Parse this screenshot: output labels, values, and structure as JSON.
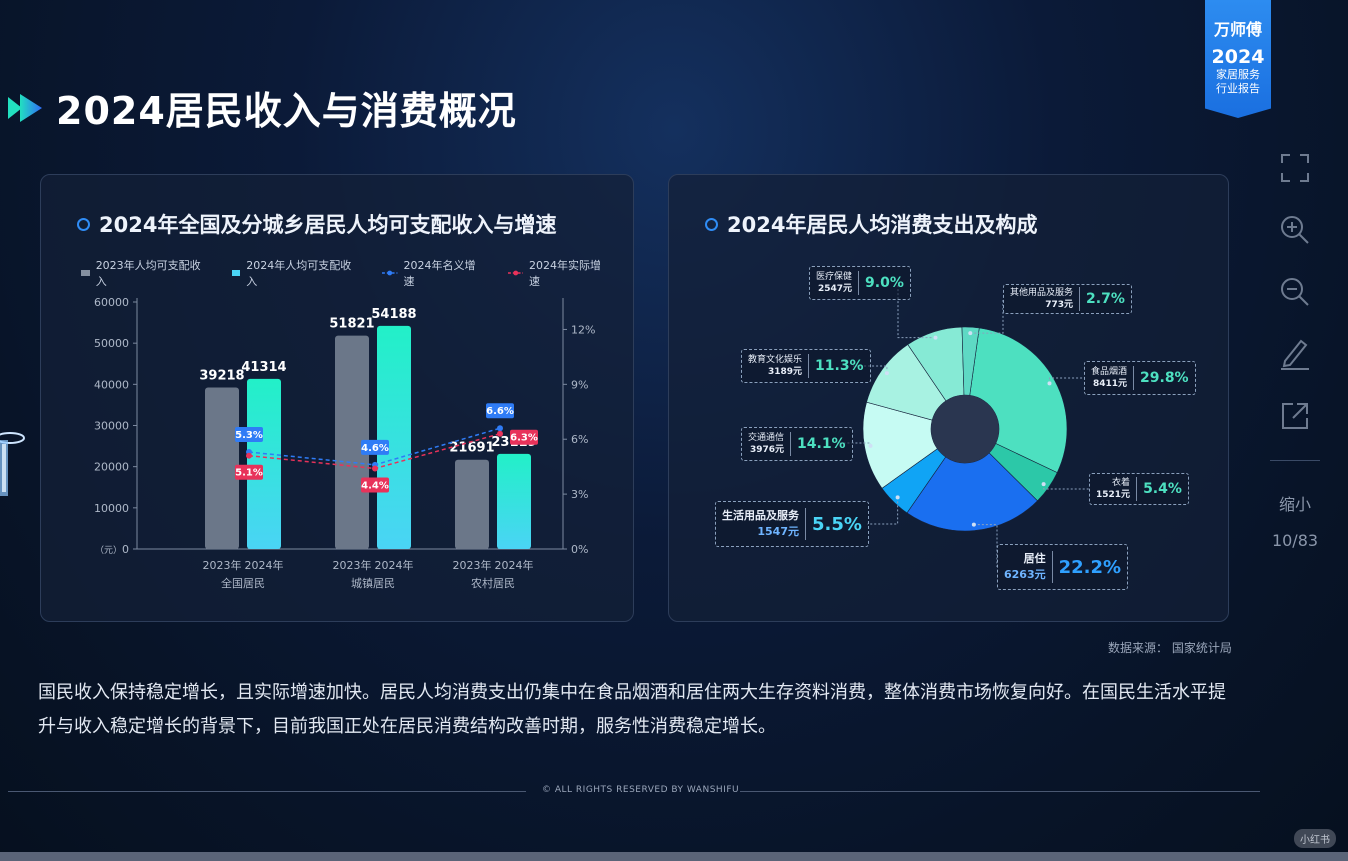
{
  "page": {
    "title": "2024居民收入与消费概况"
  },
  "brand": {
    "name": "万师傅",
    "year": "2024",
    "sub_line1": "家居服务",
    "sub_line2": "行业报告"
  },
  "toolbar": {
    "zoom_label": "缩小",
    "page_counter": "10/83"
  },
  "left_panel": {
    "title": "2024年全国及分城乡居民人均可支配收入与增速",
    "legend": [
      "2023年人均可支配收入",
      "2024年人均可支配收入",
      "2024年名义增速",
      "2024年实际增速"
    ]
  },
  "right_panel": {
    "title": "2024年居民人均消费支出及构成",
    "callouts": [
      {
        "name": "医疗保健",
        "amount": "2547元",
        "pct": "9.0%"
      },
      {
        "name": "其他用品及服务",
        "amount": "773元",
        "pct": "2.7%"
      },
      {
        "name": "教育文化娱乐",
        "amount": "3189元",
        "pct": "11.3%"
      },
      {
        "name": "食品烟酒",
        "amount": "8411元",
        "pct": "29.8%"
      },
      {
        "name": "交通通信",
        "amount": "3976元",
        "pct": "14.1%"
      },
      {
        "name": "衣着",
        "amount": "1521元",
        "pct": "5.4%"
      },
      {
        "name": "生活用品及服务",
        "amount": "1547元",
        "pct": "5.5%"
      },
      {
        "name": "居住",
        "amount": "6263元",
        "pct": "22.2%"
      }
    ]
  },
  "source": "数据来源：  国家统计局",
  "summary": "国民收入保持稳定增长，且实际增速加快。居民人均消费支出仍集中在食品烟酒和居住两大生存资料消费，整体消费市场恢复向好。在国民生活水平提升与收入稳定增长的背景下，目前我国正处在居民消费结构改善时期，服务性消费稳定增长。",
  "footer": "© ALL RIGHTS RESERVED BY WANSHIFU",
  "watermark": "小红书",
  "colors": {
    "bar2023": "#6b7789",
    "bar2024_top": "#22f0c8",
    "bar2024_bottom": "#4ad4f5",
    "nominal": "#2f7cf6",
    "real": "#e8325a",
    "accent": "#2f8cf5"
  },
  "chart_data": [
    {
      "type": "bar",
      "title": "2024年全国及分城乡居民人均可支配收入与增速",
      "categories": [
        "全国居民",
        "城镇居民",
        "农村居民"
      ],
      "sub_labels": [
        "2023年",
        "2024年"
      ],
      "y_unit": "（元）",
      "ylim": [
        0,
        60000
      ],
      "yticks": [
        0,
        10000,
        20000,
        30000,
        40000,
        50000,
        60000
      ],
      "y2lim": [
        0,
        13.5
      ],
      "y2ticks": [
        "0%",
        "3%",
        "6%",
        "9%",
        "12%"
      ],
      "series": [
        {
          "name": "2023年人均可支配收入",
          "values": [
            39218,
            51821,
            21691
          ]
        },
        {
          "name": "2024年人均可支配收入",
          "values": [
            41314,
            54188,
            23119
          ]
        },
        {
          "name": "2024年名义增速",
          "values": [
            5.3,
            4.6,
            6.6
          ],
          "labels": [
            "5.3%",
            "4.6%",
            "6.6%"
          ],
          "axis": "right"
        },
        {
          "name": "2024年实际增速",
          "values": [
            5.1,
            4.4,
            6.3
          ],
          "labels": [
            "5.1%",
            "4.4%",
            "6.3%"
          ],
          "axis": "right"
        }
      ],
      "legend": "top"
    },
    {
      "type": "pie",
      "title": "2024年居民人均消费支出及构成",
      "donut": true,
      "slices": [
        {
          "name": "食品烟酒",
          "value": 29.8,
          "amount": 8411,
          "color": "#4de0c0"
        },
        {
          "name": "衣着",
          "value": 5.4,
          "amount": 1521,
          "color": "#2cc8a8"
        },
        {
          "name": "居住",
          "value": 22.2,
          "amount": 6263,
          "color": "#1a6ff0"
        },
        {
          "name": "生活用品及服务",
          "value": 5.5,
          "amount": 1547,
          "color": "#10a4f5"
        },
        {
          "name": "交通通信",
          "value": 14.1,
          "amount": 3976,
          "color": "#c6fbf3"
        },
        {
          "name": "教育文化娱乐",
          "value": 11.3,
          "amount": 3189,
          "color": "#a8f2e2"
        },
        {
          "name": "医疗保健",
          "value": 9.0,
          "amount": 2547,
          "color": "#86ead5"
        },
        {
          "name": "其他用品及服务",
          "value": 2.7,
          "amount": 773,
          "color": "#5ed9c4"
        }
      ]
    }
  ]
}
